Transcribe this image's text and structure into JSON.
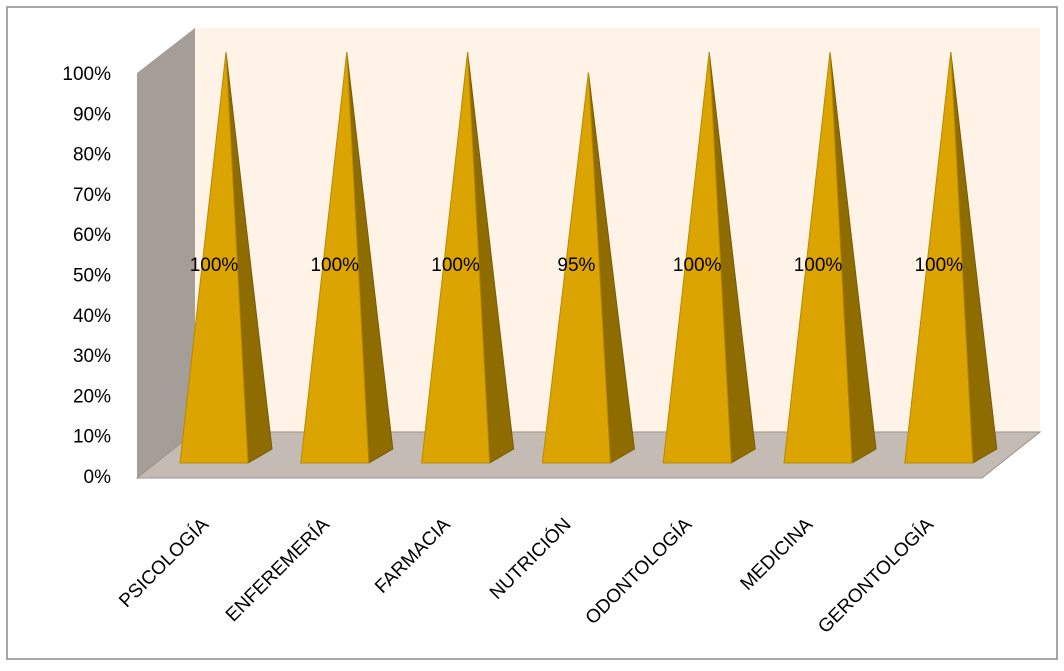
{
  "chart_data": {
    "type": "pyramid",
    "categories": [
      "PSICOLOGÍA",
      "ENFEREMERÍA",
      "FARMACIA",
      "NUTRICIÓN",
      "ODONTOLOGÍA",
      "MEDICINA",
      "GERONTOLOGÍA"
    ],
    "values": [
      100,
      100,
      100,
      95,
      100,
      100,
      100
    ],
    "value_labels": [
      "100%",
      "100%",
      "100%",
      "95%",
      "100%",
      "100%",
      "100%"
    ],
    "color": "#dba400",
    "ylim": [
      0,
      100
    ],
    "yticks": [
      {
        "value": 0,
        "label": "0%"
      },
      {
        "value": 10,
        "label": "10%"
      },
      {
        "value": 20,
        "label": "20%"
      },
      {
        "value": 30,
        "label": "30%"
      },
      {
        "value": 40,
        "label": "40%"
      },
      {
        "value": 50,
        "label": "50%"
      },
      {
        "value": 60,
        "label": "60%"
      },
      {
        "value": 70,
        "label": "70%"
      },
      {
        "value": 80,
        "label": "80%"
      },
      {
        "value": 90,
        "label": "90%"
      },
      {
        "value": 100,
        "label": "100%"
      }
    ]
  }
}
